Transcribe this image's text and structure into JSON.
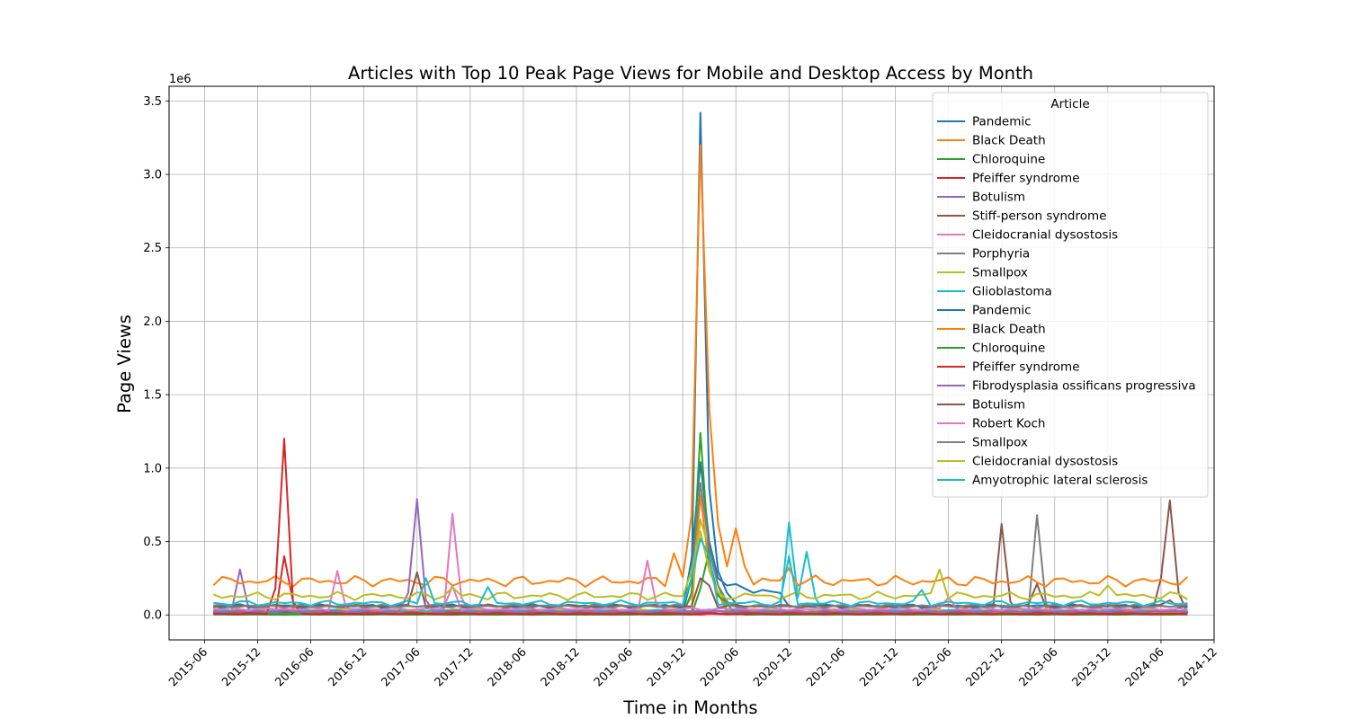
{
  "chart_data": {
    "type": "line",
    "title": "Articles with Top 10 Peak Page Views for Mobile and Desktop Access by Month",
    "xlabel": "Time in Months",
    "ylabel": "Page Views",
    "y_offset_label": "1e6",
    "y_scale_factor": 1000000,
    "xlim": [
      "2015-02",
      "2024-12"
    ],
    "ylim": [
      -170000,
      3600000
    ],
    "grid": true,
    "x_ticks": [
      "2015-06",
      "2015-12",
      "2016-06",
      "2016-12",
      "2017-06",
      "2017-12",
      "2018-06",
      "2018-12",
      "2019-06",
      "2019-12",
      "2020-06",
      "2020-12",
      "2021-06",
      "2021-12",
      "2022-06",
      "2022-12",
      "2023-06",
      "2023-12",
      "2024-06",
      "2024-12"
    ],
    "y_ticks": [
      0.0,
      0.5,
      1.0,
      1.5,
      2.0,
      2.5,
      3.0,
      3.5
    ],
    "legend": {
      "title": "Article",
      "position": "top-right"
    },
    "palette": [
      "#1f77b4",
      "#ff7f0e",
      "#2ca02c",
      "#d62728",
      "#9467bd",
      "#8c564b",
      "#e377c2",
      "#7f7f7f",
      "#bcbd22",
      "#17becf"
    ],
    "series": [
      {
        "name": "Pandemic",
        "base": 22000,
        "noise": 6000,
        "peaks": [
          [
            "2020-01",
            250000
          ],
          [
            "2020-02",
            3420000
          ],
          [
            "2020-03",
            860000
          ],
          [
            "2020-04",
            300000
          ],
          [
            "2020-05",
            150000
          ],
          [
            "2020-06",
            80000
          ]
        ]
      },
      {
        "name": "Black Death",
        "base": 20000,
        "noise": 5000,
        "peaks": [
          [
            "2020-02",
            820000
          ],
          [
            "2020-03",
            310000
          ],
          [
            "2020-04",
            150000
          ]
        ]
      },
      {
        "name": "Chloroquine",
        "base": 2000,
        "noise": 1000,
        "peaks": [
          [
            "2020-02",
            180000
          ],
          [
            "2020-03",
            440000
          ],
          [
            "2020-04",
            200000
          ],
          [
            "2020-05",
            90000
          ],
          [
            "2020-06",
            60000
          ]
        ]
      },
      {
        "name": "Pfeiffer syndrome",
        "base": 4000,
        "noise": 2000,
        "peaks": [
          [
            "2016-03",
            400000
          ],
          [
            "2016-04",
            90000
          ]
        ]
      },
      {
        "name": "Botulism",
        "base": 9000,
        "noise": 3000,
        "peaks": [
          [
            "2015-10",
            310000
          ],
          [
            "2015-11",
            40000
          ]
        ]
      },
      {
        "name": "Stiff-person syndrome",
        "base": 15000,
        "noise": 5000,
        "peaks": [
          [
            "2022-12",
            620000
          ],
          [
            "2023-01",
            90000
          ],
          [
            "2024-06",
            250000
          ],
          [
            "2024-07",
            780000
          ],
          [
            "2024-08",
            150000
          ]
        ]
      },
      {
        "name": "Cleidocranial dysostosis",
        "base": 8000,
        "noise": 3000,
        "peaks": [
          [
            "2017-10",
            690000
          ],
          [
            "2017-11",
            120000
          ]
        ]
      },
      {
        "name": "Porphyria",
        "base": 10000,
        "noise": 3000,
        "peaks": [
          [
            "2023-04",
            680000
          ],
          [
            "2023-05",
            80000
          ]
        ]
      },
      {
        "name": "Smallpox",
        "base": 35000,
        "noise": 8000,
        "peaks": [
          [
            "2020-01",
            120000
          ],
          [
            "2020-02",
            650000
          ],
          [
            "2020-03",
            450000
          ],
          [
            "2020-04",
            200000
          ]
        ]
      },
      {
        "name": "Glioblastoma",
        "base": 30000,
        "noise": 8000,
        "peaks": [
          [
            "2020-12",
            630000
          ],
          [
            "2021-01",
            120000
          ],
          [
            "2021-02",
            430000
          ],
          [
            "2021-03",
            110000
          ]
        ]
      },
      {
        "name": "Pandemic",
        "base": 60000,
        "noise": 15000,
        "peaks": [
          [
            "2020-01",
            380000
          ],
          [
            "2020-02",
            1040000
          ],
          [
            "2020-03",
            500000
          ],
          [
            "2020-04",
            250000
          ],
          [
            "2020-05",
            200000
          ],
          [
            "2020-06",
            210000
          ],
          [
            "2020-07",
            180000
          ],
          [
            "2020-08",
            150000
          ],
          [
            "2020-09",
            170000
          ],
          [
            "2020-10",
            160000
          ],
          [
            "2020-11",
            150000
          ]
        ]
      },
      {
        "name": "Black Death",
        "base": 230000,
        "noise": 40000,
        "peaks": [
          [
            "2019-11",
            420000
          ],
          [
            "2020-01",
            680000
          ],
          [
            "2020-02",
            3200000
          ],
          [
            "2020-03",
            1400000
          ],
          [
            "2020-04",
            620000
          ],
          [
            "2020-05",
            330000
          ],
          [
            "2020-06",
            590000
          ],
          [
            "2020-07",
            330000
          ],
          [
            "2020-12",
            320000
          ]
        ]
      },
      {
        "name": "Chloroquine",
        "base": 5000,
        "noise": 2000,
        "peaks": [
          [
            "2020-01",
            150000
          ],
          [
            "2020-02",
            1240000
          ],
          [
            "2020-03",
            380000
          ],
          [
            "2020-04",
            130000
          ],
          [
            "2020-05",
            80000
          ]
        ]
      },
      {
        "name": "Pfeiffer syndrome",
        "base": 8000,
        "noise": 3000,
        "peaks": [
          [
            "2016-02",
            180000
          ],
          [
            "2016-03",
            1200000
          ],
          [
            "2016-04",
            80000
          ]
        ]
      },
      {
        "name": "Fibrodysplasia ossificans progressiva",
        "base": 25000,
        "noise": 6000,
        "peaks": [
          [
            "2017-05",
            150000
          ],
          [
            "2017-06",
            790000
          ],
          [
            "2017-07",
            100000
          ]
        ]
      },
      {
        "name": "Botulism",
        "base": 60000,
        "noise": 12000,
        "peaks": [
          [
            "2017-06",
            290000
          ],
          [
            "2020-02",
            250000
          ],
          [
            "2020-03",
            200000
          ],
          [
            "2023-04",
            210000
          ],
          [
            "2024-07",
            100000
          ]
        ]
      },
      {
        "name": "Robert Koch",
        "base": 40000,
        "noise": 10000,
        "peaks": [
          [
            "2016-09",
            300000
          ],
          [
            "2017-10",
            200000
          ],
          [
            "2019-08",
            370000
          ],
          [
            "2019-09",
            80000
          ],
          [
            "2022-06",
            120000
          ]
        ]
      },
      {
        "name": "Smallpox",
        "base": 60000,
        "noise": 12000,
        "peaks": [
          [
            "2020-01",
            250000
          ],
          [
            "2020-02",
            900000
          ],
          [
            "2020-03",
            450000
          ],
          [
            "2020-04",
            200000
          ]
        ]
      },
      {
        "name": "Cleidocranial dysostosis",
        "base": 130000,
        "noise": 30000,
        "peaks": [
          [
            "2017-10",
            190000
          ],
          [
            "2020-01",
            300000
          ],
          [
            "2020-02",
            570000
          ],
          [
            "2020-03",
            300000
          ],
          [
            "2022-05",
            310000
          ],
          [
            "2023-12",
            200000
          ]
        ]
      },
      {
        "name": "Amyotrophic lateral sclerosis",
        "base": 80000,
        "noise": 20000,
        "peaks": [
          [
            "2017-07",
            250000
          ],
          [
            "2018-02",
            190000
          ],
          [
            "2020-01",
            250000
          ],
          [
            "2020-02",
            520000
          ],
          [
            "2020-03",
            400000
          ],
          [
            "2020-12",
            400000
          ],
          [
            "2022-03",
            170000
          ]
        ]
      }
    ]
  }
}
